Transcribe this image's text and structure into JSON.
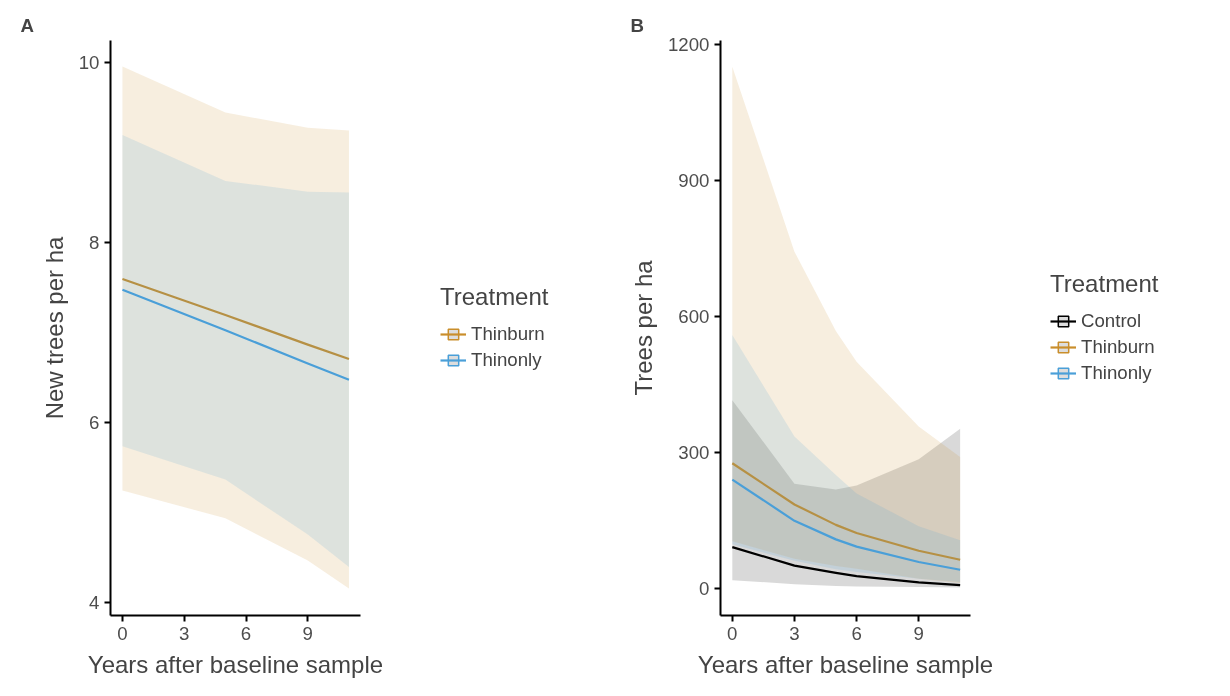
{
  "chart_data": [
    {
      "type": "line",
      "title": "A",
      "xlabel": "Years after baseline sample",
      "ylabel": "New trees per ha",
      "legend_title": "Treatment",
      "legend": "right",
      "grid": false,
      "xlim": [
        -0.58,
        11.56
      ],
      "xticks": [
        0,
        3,
        6,
        9
      ],
      "ylim": [
        3.85,
        10.24
      ],
      "yticks": [
        4,
        6,
        8,
        10
      ],
      "series": [
        {
          "name": "Thinburn",
          "color": "#c98e2b",
          "x": [
            0,
            5,
            9,
            11
          ],
          "values": [
            7.59,
            7.19,
            6.86,
            6.7
          ],
          "lower": [
            5.24,
            4.93,
            4.46,
            4.15
          ],
          "upper": [
            9.95,
            9.44,
            9.27,
            9.24
          ]
        },
        {
          "name": "Thinonly",
          "color": "#4a9fd8",
          "x": [
            0,
            5,
            9,
            11
          ],
          "values": [
            7.47,
            7.02,
            6.65,
            6.47
          ],
          "lower": [
            5.73,
            5.36,
            4.75,
            4.39
          ],
          "upper": [
            9.19,
            8.68,
            8.56,
            8.55
          ]
        }
      ]
    },
    {
      "type": "line",
      "title": "B",
      "xlabel": "Years after baseline sample",
      "ylabel": "Trees per ha",
      "legend_title": "Treatment",
      "legend": "right",
      "grid": false,
      "xlim": [
        -0.57,
        11.5
      ],
      "xticks": [
        0,
        3,
        6,
        9
      ],
      "ylim": [
        -60,
        1209
      ],
      "yticks": [
        0,
        300,
        600,
        900,
        1200
      ],
      "series": [
        {
          "name": "Control",
          "color": "#000000",
          "x": [
            0,
            3,
            5,
            6,
            9,
            11
          ],
          "values": [
            91,
            50,
            34,
            27,
            13,
            7
          ],
          "lower": [
            18,
            9,
            5,
            4,
            3,
            2
          ],
          "upper": [
            415,
            231,
            218,
            227,
            285,
            352
          ]
        },
        {
          "name": "Thinburn",
          "color": "#c98e2b",
          "x": [
            0,
            3,
            5,
            6,
            9,
            11
          ],
          "values": [
            276,
            185,
            140,
            122,
            83,
            63
          ],
          "lower": [
            104,
            65,
            49,
            43,
            21,
            12
          ],
          "upper": [
            1151,
            743,
            568,
            500,
            357,
            290
          ]
        },
        {
          "name": "Thinonly",
          "color": "#4a9fd8",
          "x": [
            0,
            3,
            5,
            6,
            9,
            11
          ],
          "values": [
            240,
            149,
            108,
            92,
            58,
            41
          ],
          "lower": [
            97,
            61,
            42,
            36,
            21,
            14
          ],
          "upper": [
            559,
            335,
            250,
            209,
            137,
            106
          ]
        }
      ]
    }
  ]
}
